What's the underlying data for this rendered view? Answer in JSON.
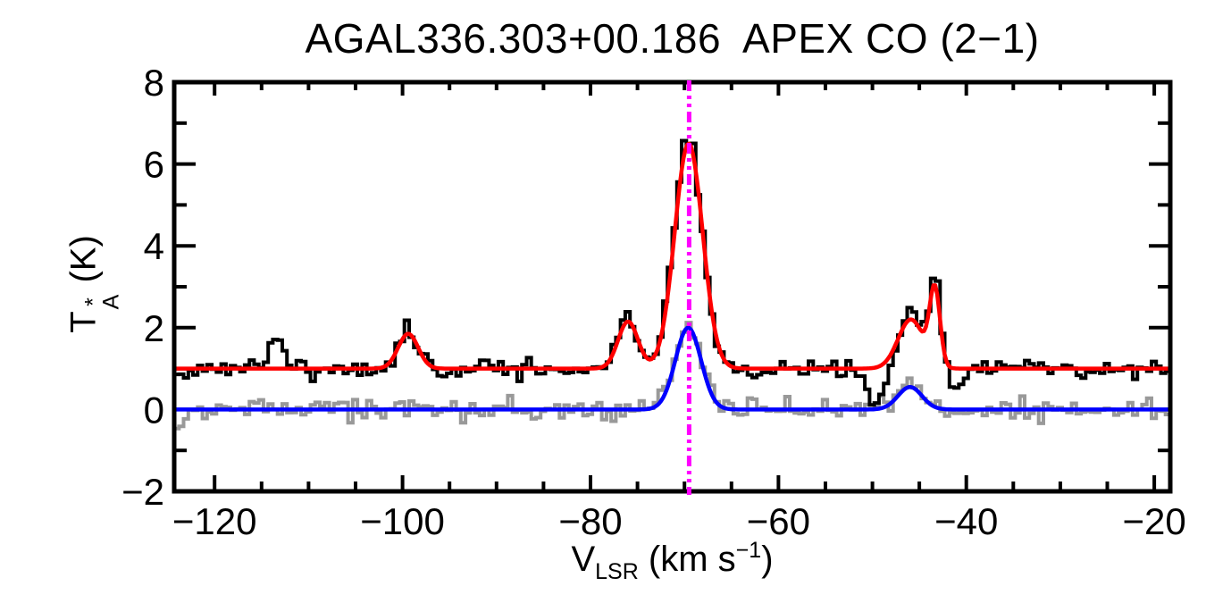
{
  "header": {
    "title": "AGAL336.303+00.186  APEX CO (2−1)"
  },
  "axes": {
    "x": {
      "label_main": "V",
      "label_sub": "LSR",
      "label_mid": " (km s",
      "label_sup": "−1",
      "label_end": ")"
    },
    "y": {
      "label_main": "T",
      "label_sup": "*",
      "label_sub": "A",
      "label_unit": " (K)"
    }
  },
  "colors": {
    "observed_spectrum": "#000000",
    "reference_spectrum": "#999999",
    "fit_observed": "#ff0000",
    "fit_reference": "#0000ff",
    "marker_line": "#ff00ff",
    "background": "#ffffff"
  },
  "chart_data": {
    "type": "line",
    "title": "AGAL336.303+00.186  APEX CO (2−1)",
    "xlabel": "V_LSR (km s^−1)",
    "ylabel": "T_A^* (K)",
    "xlim": [
      -124.3,
      -18.3
    ],
    "ylim": [
      -2,
      8
    ],
    "grid": false,
    "legend": "none",
    "x_major_ticks": [
      -120,
      -100,
      -80,
      -60,
      -40,
      -20
    ],
    "x_tick_labels": [
      "−120",
      "−100",
      "−80",
      "−60",
      "−40",
      "−20"
    ],
    "x_minor_step": 5,
    "y_major_ticks": [
      -2,
      0,
      2,
      4,
      6,
      8
    ],
    "y_tick_labels": [
      "−2",
      "0",
      "2",
      "4",
      "6",
      "8"
    ],
    "y_minor_ticks": [
      -1,
      1,
      3,
      5,
      7
    ],
    "marker_line": {
      "x": -69.5,
      "color": "#ff00ff",
      "style": "dash-dot-dot-dot"
    },
    "z_order": [
      "reference-spectrum",
      "gaussian-fit-reference",
      "observed-spectrum",
      "gaussian-fit-observed"
    ],
    "series": [
      {
        "name": "observed-spectrum",
        "kind": "histogram",
        "color": "#000000",
        "baseline": 1.0,
        "bin_width": 0.5,
        "noise_rms": 0.12,
        "seed": 11,
        "components": [
          {
            "center": -113.4,
            "amp": 0.62,
            "fwhm": 2.2
          },
          {
            "center": -99.4,
            "amp": 0.95,
            "fwhm": 2.4
          },
          {
            "center": -76.0,
            "amp": 1.3,
            "fwhm": 2.4
          },
          {
            "center": -69.6,
            "amp": 5.6,
            "fwhm": 3.5
          },
          {
            "center": -49.6,
            "amp": -1.0,
            "fwhm": 2.4
          },
          {
            "center": -45.8,
            "amp": 1.35,
            "fwhm": 3.3
          },
          {
            "center": -43.3,
            "amp": 2.1,
            "fwhm": 1.3
          },
          {
            "center": -40.8,
            "amp": -0.45,
            "fwhm": 1.8
          }
        ]
      },
      {
        "name": "reference-spectrum",
        "kind": "histogram",
        "color": "#999999",
        "baseline": 0.0,
        "bin_width": 0.5,
        "noise_rms": 0.13,
        "seed": 7,
        "components": [
          {
            "center": -69.6,
            "amp": 2.15,
            "fwhm": 3.3
          },
          {
            "center": -46.2,
            "amp": 0.65,
            "fwhm": 3.2
          },
          {
            "center": -124.2,
            "amp": -0.5,
            "fwhm": 1.5
          }
        ]
      },
      {
        "name": "gaussian-fit-observed",
        "kind": "curve",
        "color": "#ff0000",
        "baseline": 1.0,
        "components": [
          {
            "center": -99.4,
            "amp": 0.85,
            "fwhm": 2.5
          },
          {
            "center": -76.0,
            "amp": 1.15,
            "fwhm": 2.5
          },
          {
            "center": -69.55,
            "amp": 5.5,
            "fwhm": 3.5
          },
          {
            "center": -45.9,
            "amp": 1.2,
            "fwhm": 3.2
          },
          {
            "center": -43.35,
            "amp": 1.85,
            "fwhm": 1.3
          }
        ]
      },
      {
        "name": "gaussian-fit-reference",
        "kind": "curve",
        "color": "#0000ff",
        "baseline": 0.0,
        "components": [
          {
            "center": -69.6,
            "amp": 2.0,
            "fwhm": 3.2
          },
          {
            "center": -46.0,
            "amp": 0.55,
            "fwhm": 3.0
          }
        ]
      }
    ],
    "features": [
      {
        "v_lsr": -113.4,
        "peak_T_K": 1.6,
        "series": "observed"
      },
      {
        "v_lsr": -99.4,
        "peak_T_K": 1.95,
        "series": "observed"
      },
      {
        "v_lsr": -76.0,
        "peak_T_K": 2.3,
        "series": "observed"
      },
      {
        "v_lsr": -69.5,
        "peak_T_K": 6.6,
        "series": "observed",
        "note": "main peak, marked by magenta dash-dot line"
      },
      {
        "v_lsr": -49.6,
        "peak_T_K": 0.05,
        "series": "observed",
        "note": "absorption-like dip"
      },
      {
        "v_lsr": -45.8,
        "peak_T_K": 2.3,
        "series": "observed"
      },
      {
        "v_lsr": -43.3,
        "peak_T_K": 3.0,
        "series": "observed"
      },
      {
        "v_lsr": -69.6,
        "peak_T_K": 2.2,
        "series": "reference"
      },
      {
        "v_lsr": -46.0,
        "peak_T_K": 0.6,
        "series": "reference"
      },
      {
        "baseline_observed_T_K": 1.0,
        "baseline_reference_T_K": 0.0
      }
    ]
  }
}
